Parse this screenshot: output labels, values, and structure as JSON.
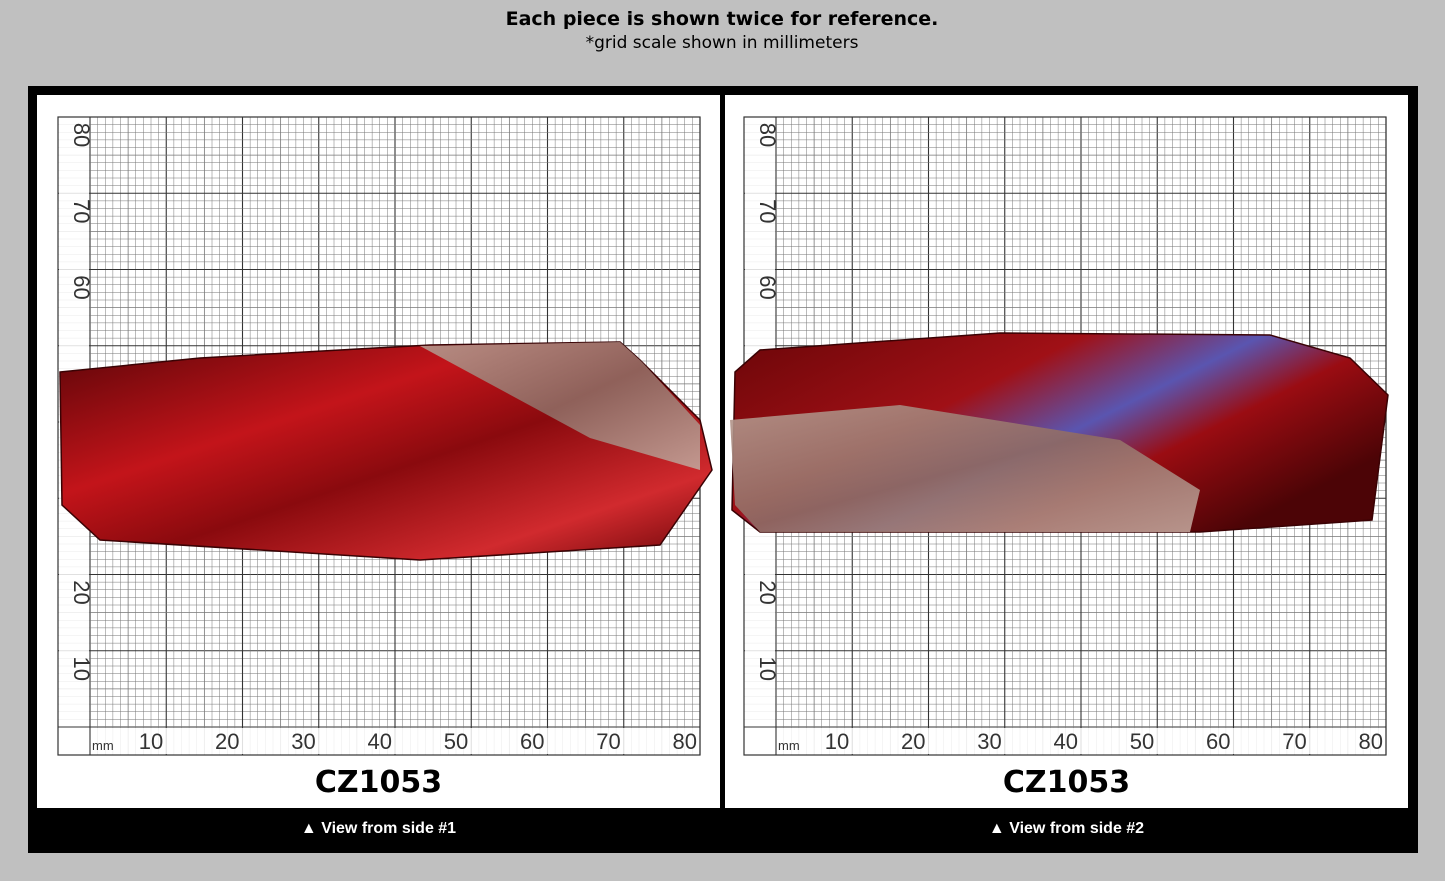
{
  "header": {
    "title": "Each piece is shown twice for reference.",
    "subtitle": "*grid scale shown in millimeters"
  },
  "panels": [
    {
      "label": "CZ1053",
      "caption": "▲ View from side #1",
      "grid": {
        "unit": "mm",
        "x_labels": [
          10,
          20,
          30,
          40,
          50,
          60,
          70,
          80
        ],
        "y_labels": [
          80,
          70,
          60,
          20,
          10
        ]
      }
    },
    {
      "label": "CZ1053",
      "caption": "▲ View from side #2",
      "grid": {
        "unit": "mm",
        "x_labels": [
          10,
          20,
          30,
          40,
          50,
          60,
          70,
          80
        ],
        "y_labels": [
          80,
          70,
          60,
          20,
          10
        ]
      }
    }
  ]
}
